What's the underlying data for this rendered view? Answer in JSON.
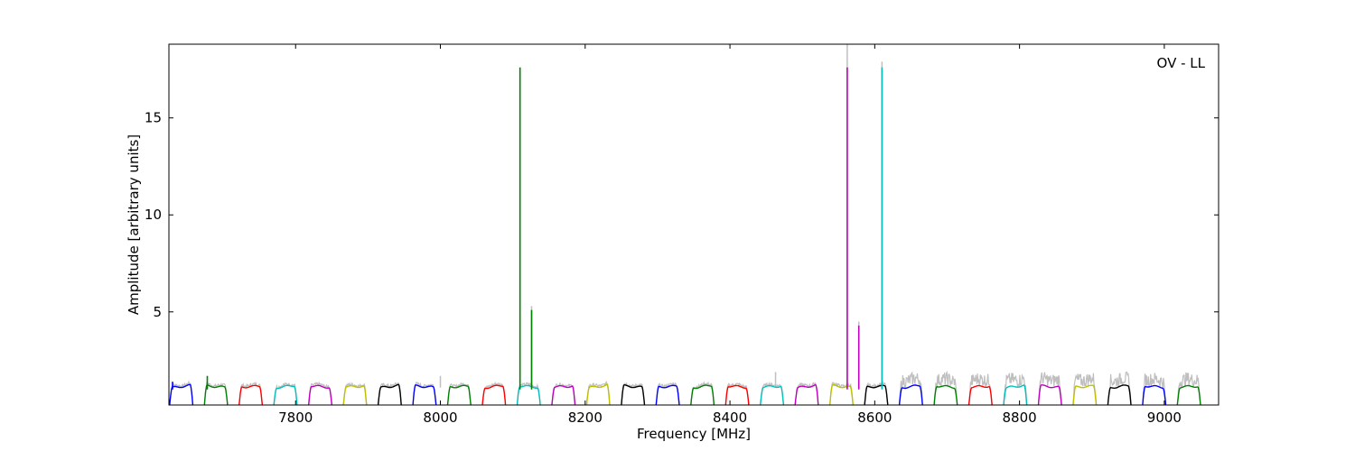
{
  "chart_data": {
    "type": "line",
    "annotation": "OV - LL",
    "xlabel": "Frequency [MHz]",
    "ylabel": "Amplitude [arbitrary units]",
    "xlim": [
      7625,
      9075
    ],
    "ylim": [
      0.2,
      18.8
    ],
    "xticks": [
      7800,
      8000,
      8200,
      8400,
      8600,
      8800,
      9000
    ],
    "yticks": [
      5,
      10,
      15
    ],
    "grid": false,
    "channel_width_mhz": 32,
    "channel_starts_mhz": [
      7626,
      7674,
      7722,
      7770,
      7818,
      7866,
      7914,
      7962,
      8010,
      8058,
      8106,
      8154,
      8202,
      8250,
      8298,
      8346,
      8394,
      8442,
      8490,
      8538,
      8586,
      8634,
      8682,
      8730,
      8778,
      8826,
      8874,
      8922,
      8970,
      9018
    ],
    "series_colors": [
      "#0000ff",
      "#008000",
      "#ff0000",
      "#00bfbf",
      "#bf00bf",
      "#bfbf00",
      "#000000"
    ],
    "noise_color": "#bfbfbf",
    "band_level": 1.15,
    "spikes": [
      {
        "x": 7630,
        "y": 1.4,
        "color": "#0000ff"
      },
      {
        "x": 7678,
        "y": 1.7,
        "color": "#008000"
      },
      {
        "x": 8110,
        "y": 17.6,
        "color": "#008000"
      },
      {
        "x": 8126,
        "y": 5.1,
        "color": "#008000"
      },
      {
        "x": 8562,
        "y": 17.6,
        "color": "#bf00bf"
      },
      {
        "x": 8578,
        "y": 4.3,
        "color": "#bf00bf"
      },
      {
        "x": 8610,
        "y": 17.6,
        "color": "#00bfbf"
      }
    ],
    "noise_spikes": [
      {
        "x": 8000,
        "y": 1.7
      },
      {
        "x": 8463,
        "y": 1.9
      },
      {
        "x": 8562,
        "y": 18.8
      },
      {
        "x": 8578,
        "y": 4.5
      },
      {
        "x": 8610,
        "y": 17.9
      },
      {
        "x": 8126,
        "y": 5.3
      }
    ]
  }
}
